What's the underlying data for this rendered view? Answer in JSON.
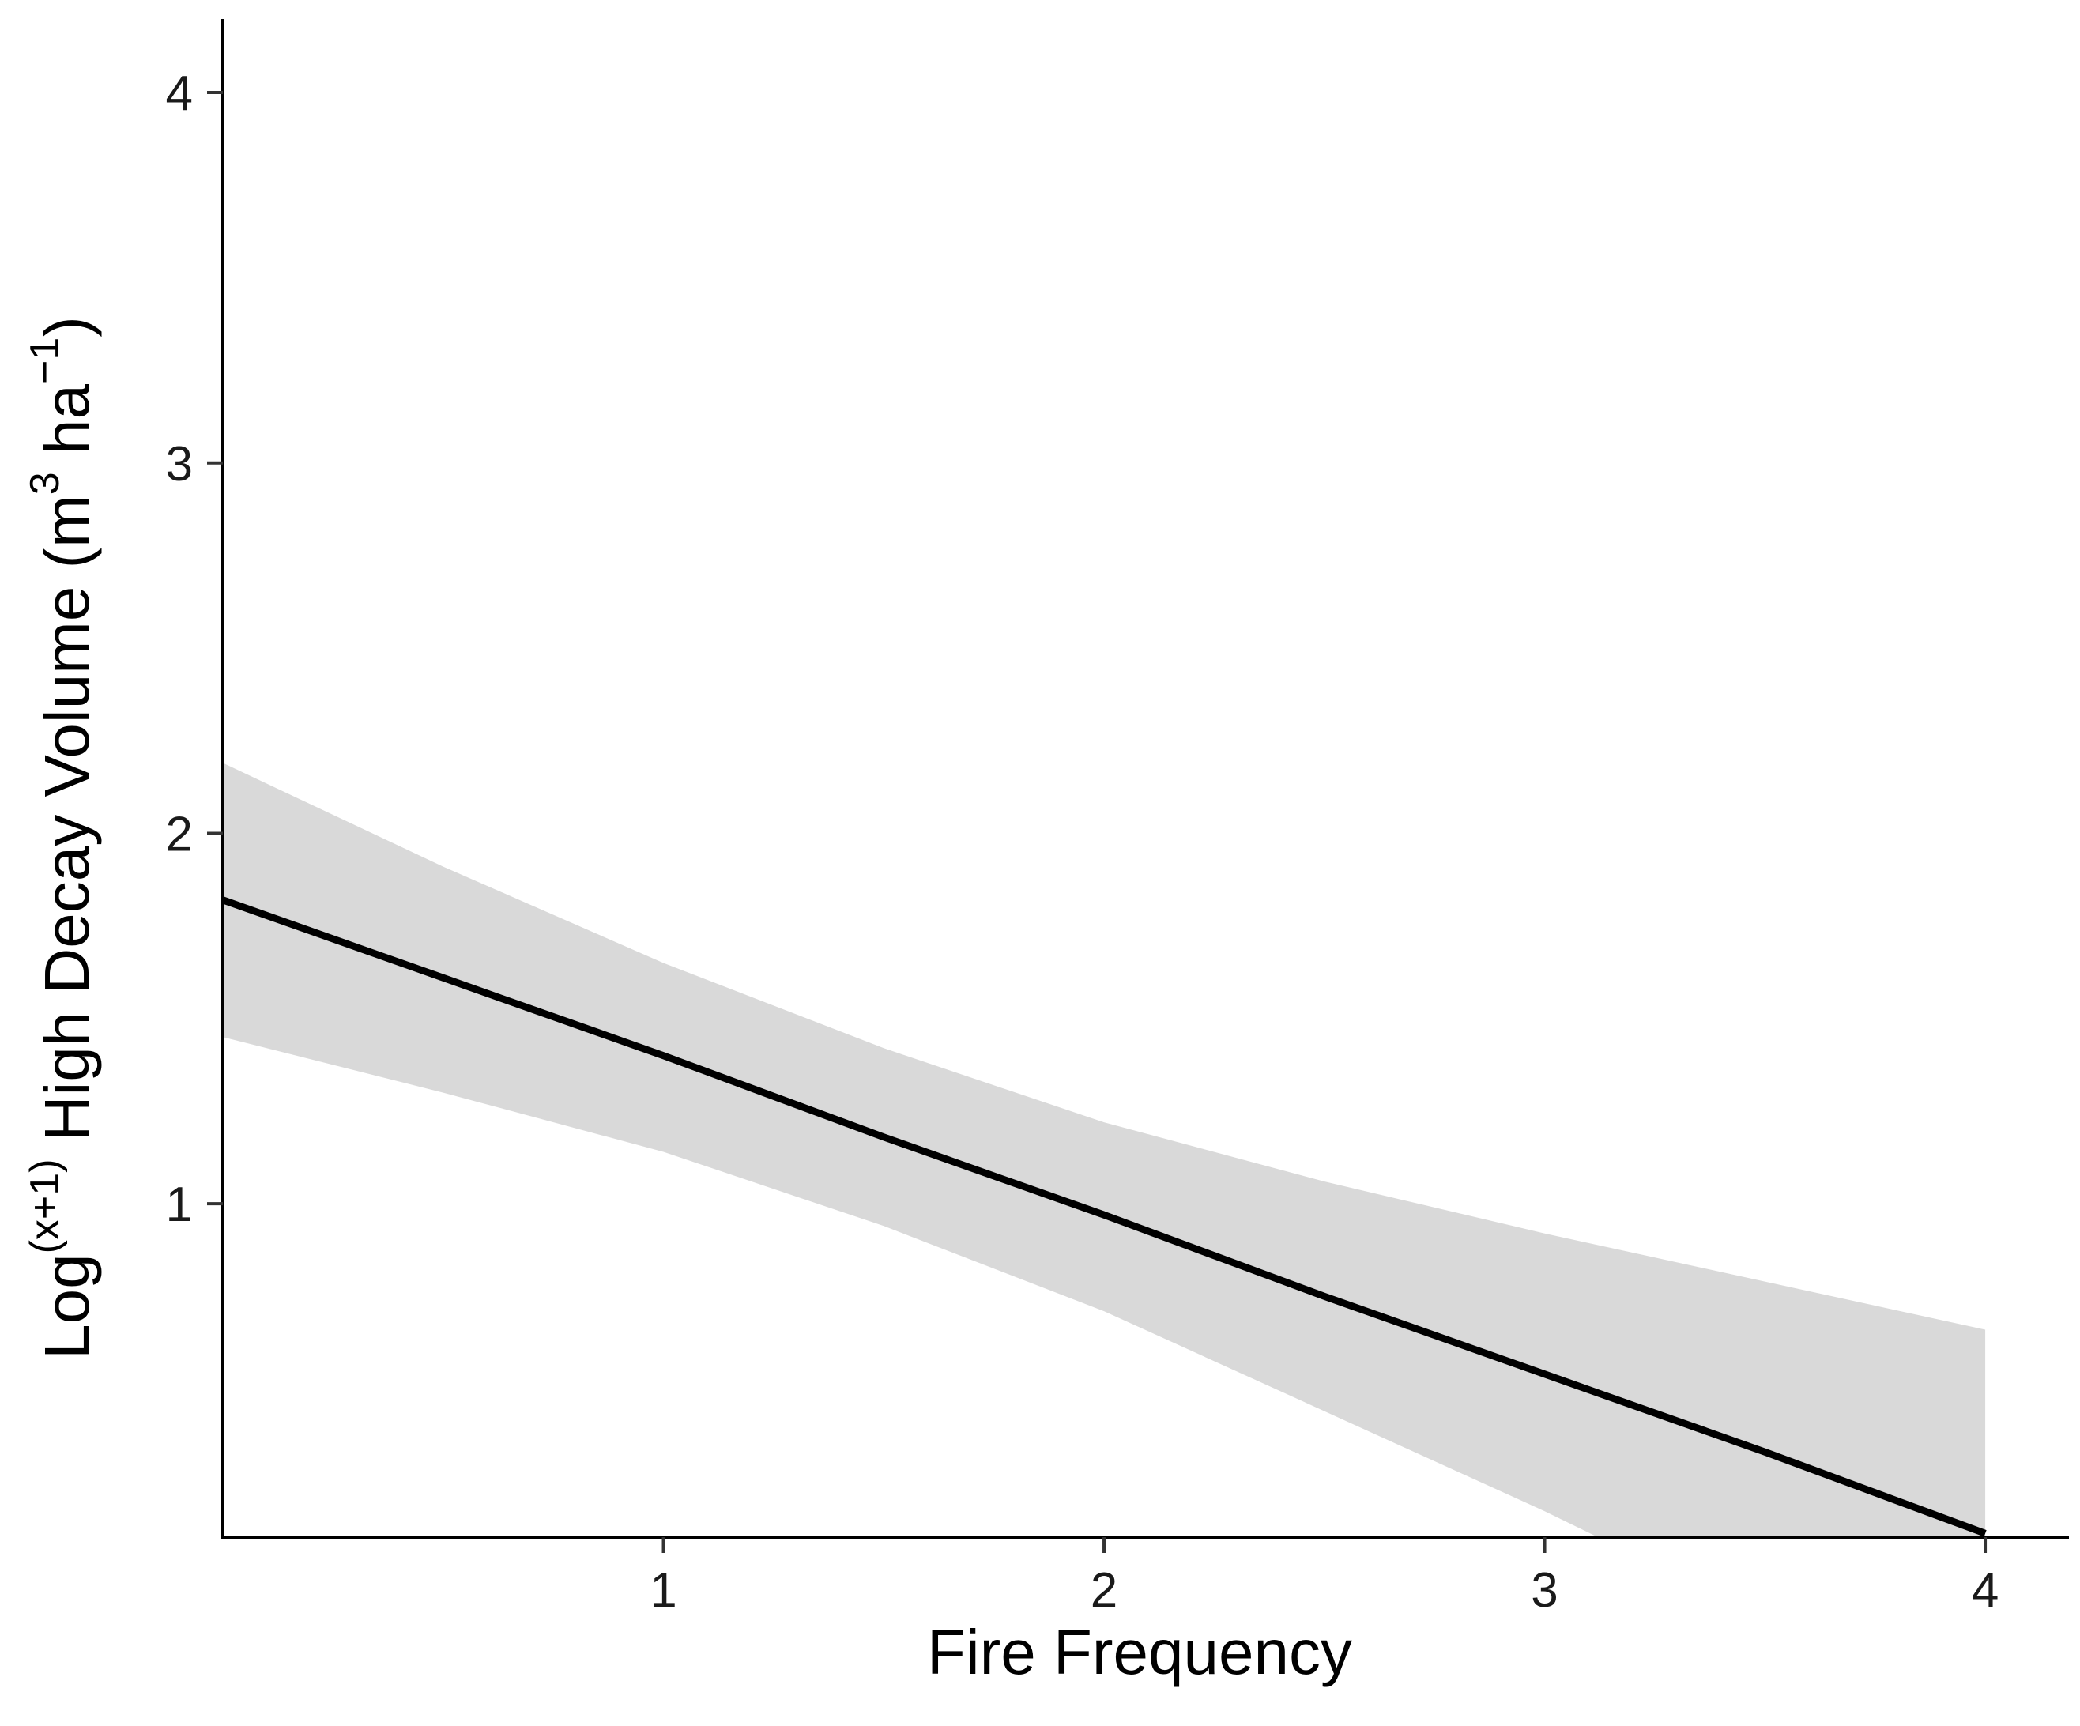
{
  "chart_data": {
    "type": "line",
    "xlabel": "Fire Frequency",
    "ylabel": {
      "prefix": "Log",
      "superscript": "(x+1)",
      "main": " High Decay Volume (m",
      "unit_sup1": "3",
      "middle": " ha",
      "unit_sup2": "−1",
      "suffix": ")"
    },
    "xlim": [
      0,
      4.19
    ],
    "ylim": [
      0.1,
      4.19
    ],
    "x_ticks": [
      1,
      2,
      3,
      4
    ],
    "y_ticks": [
      1,
      2,
      3,
      4
    ],
    "grid": false,
    "series": [
      {
        "values": [
          {
            "x": 0.0,
            "y": 1.82,
            "lower": 1.45,
            "upper": 2.19
          },
          {
            "x": 0.5,
            "y": 1.61,
            "lower": 1.3,
            "upper": 1.91
          },
          {
            "x": 1.0,
            "y": 1.4,
            "lower": 1.14,
            "upper": 1.65
          },
          {
            "x": 1.5,
            "y": 1.18,
            "lower": 0.94,
            "upper": 1.42
          },
          {
            "x": 2.0,
            "y": 0.97,
            "lower": 0.71,
            "upper": 1.22
          },
          {
            "x": 2.5,
            "y": 0.75,
            "lower": 0.44,
            "upper": 1.06
          },
          {
            "x": 3.0,
            "y": 0.54,
            "lower": 0.17,
            "upper": 0.92
          },
          {
            "x": 3.5,
            "y": 0.33,
            "lower": -0.12,
            "upper": 0.79
          },
          {
            "x": 4.0,
            "y": 0.11,
            "lower": -0.42,
            "upper": 0.66
          }
        ],
        "line_color": "#000000",
        "band_color": "#d9d9d9"
      }
    ]
  }
}
